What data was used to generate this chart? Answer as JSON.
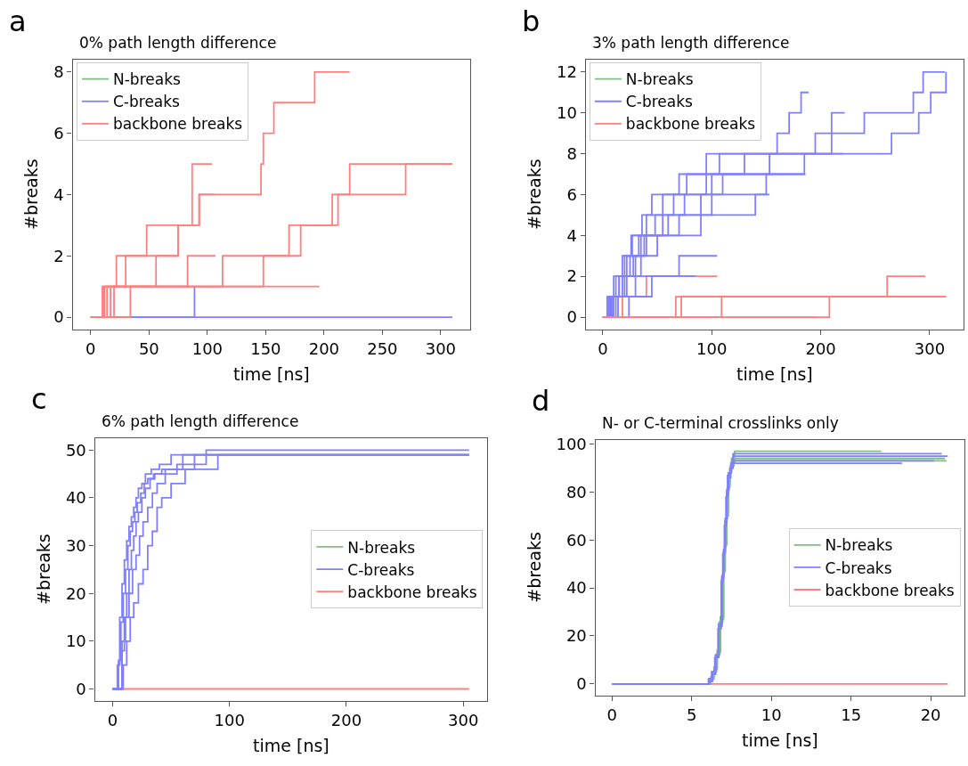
{
  "chart_data": [
    {
      "type": "step",
      "title": "0% path length difference",
      "xlabel": "time [ns]",
      "ylabel": "#breaks",
      "annotations": [
        "a"
      ],
      "legend": "top left",
      "xlim": [
        -15.5,
        325.5
      ],
      "xticks": [
        0,
        50,
        100,
        150,
        200,
        250,
        300
      ],
      "ylim": [
        -0.4,
        8.4
      ],
      "yticks": [
        0,
        2,
        4,
        6,
        8
      ],
      "series": [
        {
          "name": "N-breaks",
          "color": "#7fbf7f",
          "values": [
            null,
            null
          ]
        },
        {
          "name": "C-breaks",
          "color": "#7f7fff",
          "x": [
            0,
            310
          ],
          "values": [
            0,
            0
          ]
        },
        {
          "name": "backbone breaks",
          "color": "#ff7f7f",
          "x": [
            0,
            11,
            22,
            48,
            87,
            104
          ],
          "values": [
            0,
            1,
            2,
            3,
            5,
            5
          ]
        },
        {
          "color": "#7f7fff",
          "x": [
            0,
            89
          ],
          "values": [
            0,
            1
          ]
        },
        {
          "color": "#ff7f7f",
          "x": [
            0,
            12,
            56,
            75,
            93,
            146,
            148,
            157,
            192,
            222
          ],
          "values": [
            0,
            1,
            2,
            3,
            4,
            5,
            6,
            7,
            8,
            8
          ]
        },
        {
          "color": "#ff7f7f",
          "x": [
            0,
            10,
            113,
            170,
            207,
            222,
            310
          ],
          "values": [
            0,
            1,
            2,
            3,
            4,
            5,
            5
          ]
        },
        {
          "color": "#ff7f7f",
          "x": [
            0,
            20,
            148,
            180,
            212,
            270,
            310
          ],
          "values": [
            0,
            1,
            2,
            3,
            4,
            5,
            5
          ]
        },
        {
          "color": "#ff7f7f",
          "x": [
            0,
            34,
            196
          ],
          "values": [
            0,
            1,
            1
          ]
        },
        {
          "color": "#ff7f7f",
          "x": [
            0,
            17,
            83,
            107
          ],
          "values": [
            0,
            1,
            2,
            2
          ]
        },
        {
          "color": "#ff7f7f",
          "x": [
            0,
            14,
            30,
            75,
            93,
            106
          ],
          "values": [
            0,
            1,
            2,
            3,
            4,
            4
          ]
        }
      ]
    },
    {
      "type": "step",
      "title": "3% path length difference",
      "xlabel": "time [ns]",
      "ylabel": "#breaks",
      "annotations": [
        "b"
      ],
      "legend": "top left",
      "xlim": [
        -15.75,
        330.75
      ],
      "xticks": [
        0,
        100,
        200,
        300
      ],
      "ylim": [
        -0.6,
        12.6
      ],
      "yticks": [
        0,
        2,
        4,
        6,
        8,
        10,
        12
      ],
      "series": [
        {
          "name": "N-breaks",
          "color": "#7fbf7f",
          "values": [
            null,
            null
          ]
        },
        {
          "name": "C-breaks",
          "color": "#7f7fff",
          "x": [
            0,
            5,
            12,
            20,
            27,
            40,
            55,
            95,
            185,
            265,
            290,
            301,
            315
          ],
          "values": [
            0,
            1,
            2,
            3,
            4,
            5,
            6,
            7,
            8,
            9,
            10,
            11,
            12
          ]
        },
        {
          "name": "backbone breaks",
          "color": "#ff7f7f",
          "x": [
            0,
            18,
            40,
            105
          ],
          "values": [
            0,
            1,
            2,
            2
          ]
        },
        {
          "color": "#7f7fff",
          "x": [
            0,
            7,
            15,
            22,
            35,
            55,
            75,
            100,
            153,
            210,
            240,
            285,
            294,
            314
          ],
          "values": [
            0,
            1,
            2,
            3,
            4,
            5,
            6,
            7,
            8,
            9,
            10,
            11,
            12,
            12
          ]
        },
        {
          "color": "#7f7fff",
          "x": [
            0,
            4,
            10,
            18,
            26,
            36,
            45,
            70,
            107,
            160,
            171,
            182,
            189
          ],
          "values": [
            0,
            1,
            2,
            3,
            4,
            5,
            6,
            7,
            8,
            9,
            10,
            11,
            11
          ]
        },
        {
          "color": "#7f7fff",
          "x": [
            0,
            8,
            15,
            28,
            38,
            48,
            65,
            77,
            95,
            195,
            210,
            222
          ],
          "values": [
            0,
            1,
            2,
            3,
            4,
            5,
            6,
            7,
            8,
            9,
            10,
            10
          ]
        },
        {
          "color": "#7f7fff",
          "x": [
            0,
            10,
            20,
            30,
            40,
            60,
            90,
            110,
            130,
            220
          ],
          "values": [
            0,
            1,
            2,
            3,
            4,
            5,
            6,
            7,
            8,
            8
          ]
        },
        {
          "color": "#7f7fff",
          "x": [
            0,
            6,
            18,
            25,
            33,
            70,
            100,
            150,
            186
          ],
          "values": [
            0,
            1,
            2,
            3,
            4,
            5,
            6,
            7,
            7
          ]
        },
        {
          "color": "#7f7fff",
          "x": [
            0,
            12,
            22,
            35,
            50,
            90,
            140,
            153
          ],
          "values": [
            0,
            1,
            2,
            3,
            4,
            5,
            6,
            6
          ]
        },
        {
          "color": "#7f7fff",
          "x": [
            0,
            9,
            30,
            70,
            105
          ],
          "values": [
            0,
            1,
            2,
            3,
            3
          ]
        },
        {
          "color": "#7f7fff",
          "x": [
            0,
            14,
            45,
            85
          ],
          "values": [
            0,
            1,
            2,
            2
          ]
        },
        {
          "color": "#7f7fff",
          "x": [
            0,
            24,
            45
          ],
          "values": [
            0,
            1,
            1
          ]
        },
        {
          "color": "#ff7f7f",
          "x": [
            0,
            67,
            261,
            296
          ],
          "values": [
            0,
            1,
            2,
            2
          ]
        },
        {
          "color": "#ff7f7f",
          "x": [
            0,
            72,
            315
          ],
          "values": [
            0,
            1,
            1
          ]
        },
        {
          "color": "#ff7f7f",
          "x": [
            0,
            109,
            315
          ],
          "values": [
            0,
            1,
            1
          ]
        },
        {
          "color": "#ff7f7f",
          "x": [
            0,
            208,
            315
          ],
          "values": [
            0,
            1,
            1
          ]
        },
        {
          "color": "#ff7f7f",
          "x": [
            0,
            196
          ],
          "values": [
            0,
            0
          ]
        }
      ]
    },
    {
      "type": "step",
      "title": "6% path length difference",
      "xlabel": "time [ns]",
      "ylabel": "#breaks",
      "annotations": [
        "c"
      ],
      "legend": "right",
      "xlim": [
        -15.25,
        320.25
      ],
      "xticks": [
        0,
        100,
        200,
        300
      ],
      "ylim": [
        -2.5,
        52.5
      ],
      "yticks": [
        0,
        10,
        20,
        30,
        40,
        50
      ],
      "series": [
        {
          "name": "N-breaks",
          "color": "#7fbf7f",
          "values": [
            null,
            null
          ]
        },
        {
          "name": "C-breaks",
          "color": "#7f7fff",
          "x": [
            0,
            4,
            6,
            8,
            10,
            12,
            14,
            16,
            18,
            20,
            22,
            25,
            28,
            33,
            40,
            50,
            305
          ],
          "values": [
            0,
            5,
            15,
            22,
            27,
            31,
            34,
            36,
            38,
            40,
            42,
            43,
            45,
            46,
            47,
            49,
            49
          ]
        },
        {
          "name": "backbone breaks",
          "color": "#ff7f7f",
          "x": [
            0,
            305
          ],
          "values": [
            0,
            0
          ]
        },
        {
          "color": "#7f7fff",
          "x": [
            0,
            5,
            7,
            9,
            11,
            13,
            15,
            17,
            19,
            21,
            24,
            27,
            30,
            35,
            45,
            60,
            305
          ],
          "values": [
            0,
            6,
            14,
            20,
            25,
            30,
            33,
            35,
            37,
            39,
            41,
            43,
            44,
            45,
            46,
            49,
            49
          ]
        },
        {
          "color": "#7f7fff",
          "x": [
            0,
            8,
            10,
            12,
            14,
            16,
            18,
            20,
            22,
            25,
            28,
            32,
            36,
            42,
            55,
            80,
            305
          ],
          "values": [
            0,
            8,
            15,
            20,
            25,
            29,
            32,
            35,
            37,
            40,
            42,
            44,
            45,
            46,
            47,
            50,
            50
          ]
        },
        {
          "color": "#7f7fff",
          "x": [
            0,
            8,
            11,
            14,
            17,
            20,
            23,
            26,
            30,
            34,
            38,
            45,
            55,
            70,
            305
          ],
          "values": [
            0,
            10,
            15,
            20,
            25,
            28,
            32,
            35,
            38,
            41,
            43,
            45,
            46,
            49,
            49
          ]
        },
        {
          "color": "#7f7fff",
          "x": [
            0,
            9,
            12,
            15,
            18,
            22,
            26,
            30,
            34,
            38,
            42,
            50,
            62,
            90,
            305
          ],
          "values": [
            0,
            5,
            10,
            15,
            18,
            22,
            25,
            30,
            33,
            38,
            40,
            43,
            46,
            49,
            49
          ]
        }
      ]
    },
    {
      "type": "step",
      "title": "N- or C-terminal crosslinks only",
      "xlabel": "time [ns]",
      "ylabel": "#breaks",
      "annotations": [
        "d"
      ],
      "legend": "right",
      "xlim": [
        -1.05,
        22.1
      ],
      "xticks": [
        0,
        5,
        10,
        15,
        20
      ],
      "ylim": [
        -4.85,
        101.85
      ],
      "yticks": [
        0,
        20,
        40,
        60,
        80,
        100
      ],
      "series": [
        {
          "name": "N-breaks",
          "color": "#7fbf7f",
          "x": [
            0,
            6.0,
            6.2,
            6.4,
            6.6,
            6.8,
            7.0,
            7.1,
            7.2,
            7.3,
            7.4,
            7.5,
            7.7,
            16.9
          ],
          "values": [
            0,
            0,
            2,
            6,
            13,
            27,
            48,
            60,
            72,
            84,
            90,
            94,
            97,
            97
          ]
        },
        {
          "name": "C-breaks",
          "color": "#7f7fff",
          "x": [
            0,
            5.9,
            6.1,
            6.3,
            6.5,
            6.7,
            6.9,
            7.0,
            7.1,
            7.2,
            7.3,
            7.45,
            7.6,
            20.7
          ],
          "values": [
            0,
            0,
            2,
            5,
            12,
            25,
            45,
            55,
            68,
            80,
            88,
            91,
            96,
            96
          ]
        },
        {
          "name": "backbone breaks",
          "color": "#ff7f7f",
          "x": [
            0,
            21.07
          ],
          "values": [
            0,
            0
          ]
        },
        {
          "color": "#7fbf7f",
          "x": [
            0,
            6.0,
            6.2,
            6.4,
            6.6,
            6.8,
            7.0,
            7.1,
            7.2,
            7.3,
            7.4,
            7.5,
            7.7,
            20.9
          ],
          "values": [
            0,
            0,
            3,
            7,
            14,
            28,
            47,
            58,
            70,
            82,
            89,
            92,
            94,
            94
          ]
        },
        {
          "color": "#7fbf7f",
          "x": [
            0,
            5.95,
            6.15,
            6.35,
            6.55,
            6.75,
            6.95,
            7.05,
            7.15,
            7.25,
            7.35,
            7.5,
            7.65,
            21.0
          ],
          "values": [
            0,
            0,
            2,
            5,
            12,
            26,
            46,
            57,
            69,
            81,
            88,
            91,
            93,
            93
          ]
        },
        {
          "color": "#7f7fff",
          "x": [
            0,
            5.9,
            6.1,
            6.3,
            6.5,
            6.7,
            6.9,
            7.0,
            7.1,
            7.2,
            7.3,
            7.45,
            7.6,
            21.07
          ],
          "values": [
            0,
            0,
            1,
            4,
            11,
            24,
            44,
            56,
            69,
            81,
            88,
            92,
            95,
            95
          ]
        },
        {
          "color": "#7f7fff",
          "x": [
            0,
            5.85,
            6.05,
            6.25,
            6.45,
            6.65,
            6.85,
            6.95,
            7.05,
            7.15,
            7.25,
            7.4,
            7.55,
            20.2
          ],
          "values": [
            0,
            0,
            2,
            5,
            11,
            23,
            43,
            54,
            66,
            78,
            87,
            90,
            93,
            93
          ]
        },
        {
          "color": "#7f7fff",
          "x": [
            0,
            5.9,
            6.1,
            6.3,
            6.5,
            6.7,
            6.9,
            7.0,
            7.1,
            7.2,
            7.3,
            7.45,
            7.6,
            18.2
          ],
          "values": [
            0,
            0,
            2,
            5,
            12,
            25,
            45,
            55,
            67,
            79,
            86,
            90,
            92,
            92
          ]
        }
      ]
    }
  ]
}
